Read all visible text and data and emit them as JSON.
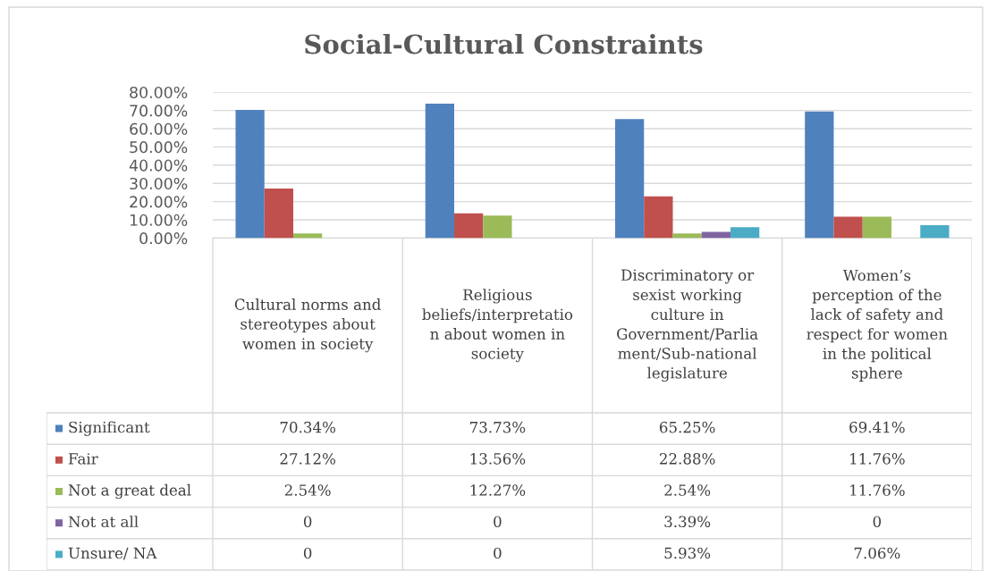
{
  "chart_data": {
    "type": "bar",
    "title": "Social-Cultural Constraints",
    "categories": [
      "Cultural norms and stereotypes about women in society",
      "Religious beliefs/interpretation about women in society",
      "Discriminatory or sexist working culture in Government/Parliament/Sub-national legislature",
      "Women’s perception of the lack of safety and respect for women in the political sphere"
    ],
    "series": [
      {
        "name": "Significant",
        "color": "#4f81bd",
        "values": [
          70.34,
          73.73,
          65.25,
          69.41
        ],
        "value_labels": [
          "70.34%",
          "73.73%",
          "65.25%",
          "69.41%"
        ]
      },
      {
        "name": "Fair",
        "color": "#c0504d",
        "values": [
          27.12,
          13.56,
          22.88,
          11.76
        ],
        "value_labels": [
          "27.12%",
          "13.56%",
          "22.88%",
          "11.76%"
        ]
      },
      {
        "name": "Not a great deal",
        "color": "#9bbb59",
        "values": [
          2.54,
          12.27,
          2.54,
          11.76
        ],
        "value_labels": [
          "2.54%",
          "12.27%",
          "2.54%",
          "11.76%"
        ]
      },
      {
        "name": "Not at all",
        "color": "#8064a2",
        "values": [
          0,
          0,
          3.39,
          0
        ],
        "value_labels": [
          "0",
          "0",
          "3.39%",
          "0"
        ]
      },
      {
        "name": "Unsure/ NA",
        "color": "#4bacc6",
        "values": [
          0,
          0,
          5.93,
          7.06
        ],
        "value_labels": [
          "0",
          "0",
          "5.93%",
          "7.06%"
        ]
      }
    ],
    "ylim": [
      0,
      80
    ],
    "yticks": [
      {
        "value": 0,
        "label": "0.00%"
      },
      {
        "value": 10,
        "label": "10.00%"
      },
      {
        "value": 20,
        "label": "20.00%"
      },
      {
        "value": 30,
        "label": "30.00%"
      },
      {
        "value": 40,
        "label": "40.00%"
      },
      {
        "value": 50,
        "label": "50.00%"
      },
      {
        "value": 60,
        "label": "60.00%"
      },
      {
        "value": 70,
        "label": "70.00%"
      },
      {
        "value": 80,
        "label": "80.00%"
      }
    ],
    "grid": "y",
    "legend": "bottom left"
  }
}
